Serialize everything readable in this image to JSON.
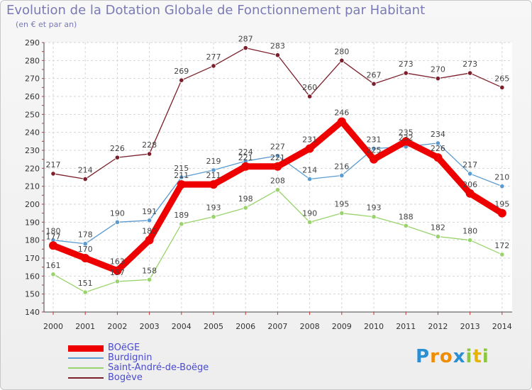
{
  "title": "Evolution de la Dotation Globale de Fonctionnement par Habitant",
  "subtitle": "(en € et par an)",
  "logo": {
    "letters": [
      "P",
      "r",
      "o",
      "x",
      "i",
      "t",
      "i"
    ],
    "colors": [
      "#2b8fd6",
      "#f08c00",
      "#f08c00",
      "#2b8fd6",
      "#8cc63f",
      "#e8b400",
      "#8cc63f"
    ]
  },
  "chart_data": {
    "type": "line",
    "categories": [
      "2000",
      "2001",
      "2002",
      "2003",
      "2004",
      "2005",
      "2006",
      "2007",
      "2008",
      "2009",
      "2010",
      "2011",
      "2012",
      "2013",
      "2014"
    ],
    "ylim": [
      140,
      290
    ],
    "yticks": [
      140,
      150,
      160,
      170,
      180,
      190,
      200,
      210,
      220,
      230,
      240,
      250,
      260,
      270,
      280,
      290
    ],
    "grid": true,
    "legend_position": "bottom-left",
    "series": [
      {
        "name": "Saint-André-de-Boëge",
        "color": "#99d36b",
        "values": [
          161,
          151,
          157,
          158,
          189,
          193,
          198,
          208,
          190,
          195,
          193,
          188,
          182,
          180,
          172
        ]
      },
      {
        "name": "Burdignin",
        "color": "#5b9bd1",
        "values": [
          180,
          178,
          190,
          191,
          215,
          219,
          224,
          227,
          214,
          216,
          231,
          232,
          234,
          217,
          210
        ]
      },
      {
        "name": "Bogève",
        "color": "#7a1f2b",
        "values": [
          217,
          214,
          226,
          228,
          269,
          277,
          287,
          283,
          260,
          280,
          267,
          273,
          270,
          273,
          265
        ]
      },
      {
        "name": "BOëGE",
        "color": "#ee0000",
        "values": [
          177,
          170,
          163,
          180,
          211,
          211,
          221,
          221,
          231,
          246,
          225,
          235,
          226,
          206,
          195
        ]
      }
    ],
    "legend_order": [
      "BOëGE",
      "Burdignin",
      "Saint-André-de-Boëge",
      "Bogève"
    ]
  }
}
